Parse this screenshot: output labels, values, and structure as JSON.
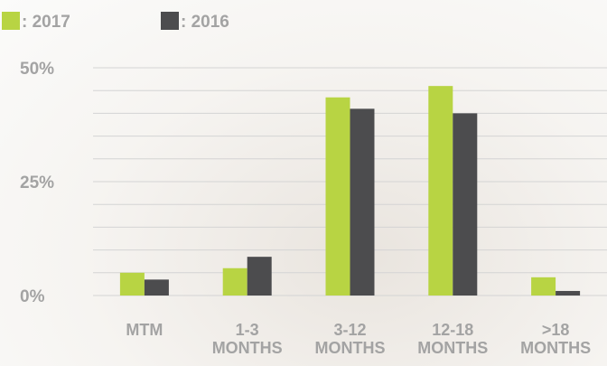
{
  "chart_data": {
    "type": "bar",
    "categories": [
      "MTM",
      "1-3 MONTHS",
      "3-12 MONTHS",
      "12-18 MONTHS",
      ">18 MONTHS"
    ],
    "series": [
      {
        "name": ": 2017",
        "color": "#b8d443",
        "values": [
          5,
          6,
          43.5,
          46,
          4
        ]
      },
      {
        "name": ": 2016",
        "color": "#4c4c4e",
        "values": [
          3.5,
          8.5,
          41,
          40,
          1
        ]
      }
    ],
    "ylim": [
      0,
      50
    ],
    "yticks": [
      {
        "value": 0,
        "label": "0%"
      },
      {
        "value": 25,
        "label": "25%"
      },
      {
        "value": 50,
        "label": "50%"
      }
    ],
    "minor_yticks": [
      5,
      10,
      15,
      20,
      30,
      35,
      40,
      45
    ],
    "grid": true,
    "legend": "top-left"
  }
}
